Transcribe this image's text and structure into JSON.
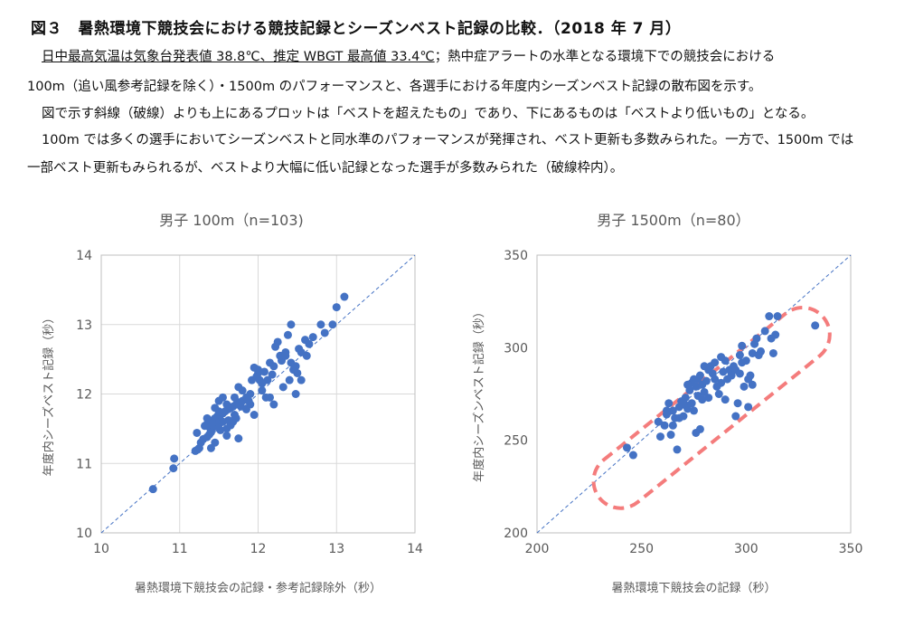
{
  "figure": {
    "title": "図３　暑熱環境下競技会における競技記録とシーズンベスト記録の比較．（2018 年 7 月）",
    "paragraphs": {
      "p1_underlined": "日中最高気温は気象台発表値 38.8℃、推定 WBGT 最高値 33.4℃",
      "p1_rest": "；熱中症アラートの水準となる環境下での競技会における",
      "p2": "100m（追い風参考記録を除く）・1500m のパフォーマンスと、各選手における年度内シーズンベスト記録の散布図を示す。",
      "p3": "図で示す斜線（破線）よりも上にあるプロットは「ベストを超えたもの」であり、下にあるものは「ベストより低いもの」となる。",
      "p4": "100m では多くの選手においてシーズンベストと同水準のパフォーマンスが発揮され、ベスト更新も多数みられた。一方で、1500m では",
      "p5": "一部ベスト更新もみられるが、ベストより大幅に低い記録となった選手が多数みられた（破線枠内）。"
    }
  },
  "colors": {
    "point": "#4472C4",
    "diagonal": "#4472C4",
    "highlight": "#F47C7C",
    "grid": "#D9D9D9",
    "axis": "#BFBFBF",
    "text": "#595959"
  },
  "chart_data": [
    {
      "type": "scatter",
      "title": "男子 100m（n=103)",
      "xlabel": "暑熱環境下競技会の記録・参考記録除外（秒）",
      "ylabel": "年度内シーズベスト記録（秒）",
      "xlim": [
        10,
        14
      ],
      "ylim": [
        10,
        14
      ],
      "xticks": [
        10,
        11,
        12,
        13,
        14
      ],
      "yticks": [
        10,
        11,
        12,
        13,
        14
      ],
      "grid": true,
      "diagonal": "y=x dashed",
      "points": [
        [
          10.66,
          10.63
        ],
        [
          10.92,
          10.93
        ],
        [
          10.93,
          11.07
        ],
        [
          11.2,
          11.18
        ],
        [
          11.23,
          11.2
        ],
        [
          11.25,
          11.22
        ],
        [
          11.27,
          11.3
        ],
        [
          11.3,
          11.35
        ],
        [
          11.35,
          11.38
        ],
        [
          11.38,
          11.42
        ],
        [
          11.22,
          11.44
        ],
        [
          11.4,
          11.47
        ],
        [
          11.45,
          11.53
        ],
        [
          11.32,
          11.54
        ],
        [
          11.35,
          11.57
        ],
        [
          11.38,
          11.6
        ],
        [
          11.42,
          11.62
        ],
        [
          11.45,
          11.65
        ],
        [
          11.48,
          11.68
        ],
        [
          11.52,
          11.7
        ],
        [
          11.55,
          11.72
        ],
        [
          11.58,
          11.75
        ],
        [
          11.62,
          11.78
        ],
        [
          11.65,
          11.8
        ],
        [
          11.68,
          11.82
        ],
        [
          11.72,
          11.85
        ],
        [
          11.75,
          11.88
        ],
        [
          11.8,
          11.9
        ],
        [
          11.85,
          11.95
        ],
        [
          11.9,
          12.0
        ],
        [
          11.35,
          11.65
        ],
        [
          11.38,
          11.52
        ],
        [
          11.4,
          11.45
        ],
        [
          11.42,
          11.55
        ],
        [
          11.5,
          11.58
        ],
        [
          11.55,
          11.6
        ],
        [
          11.6,
          11.5
        ],
        [
          11.65,
          11.55
        ],
        [
          11.68,
          11.6
        ],
        [
          11.72,
          11.65
        ],
        [
          11.45,
          11.8
        ],
        [
          11.5,
          11.9
        ],
        [
          11.55,
          11.95
        ],
        [
          11.6,
          11.85
        ],
        [
          11.7,
          11.7
        ],
        [
          11.75,
          11.36
        ],
        [
          11.4,
          11.22
        ],
        [
          11.45,
          11.3
        ],
        [
          11.6,
          11.4
        ],
        [
          11.5,
          11.75
        ],
        [
          11.7,
          11.95
        ],
        [
          11.8,
          12.05
        ],
        [
          11.75,
          12.1
        ],
        [
          11.85,
          11.78
        ],
        [
          11.9,
          11.85
        ],
        [
          11.95,
          11.7
        ],
        [
          11.98,
          12.25
        ],
        [
          12.0,
          12.3
        ],
        [
          12.02,
          12.2
        ],
        [
          12.05,
          12.15
        ],
        [
          12.0,
          12.35
        ],
        [
          11.95,
          12.38
        ],
        [
          12.05,
          12.05
        ],
        [
          12.1,
          11.95
        ],
        [
          12.12,
          12.2
        ],
        [
          12.15,
          12.45
        ],
        [
          12.2,
          12.4
        ],
        [
          12.18,
          12.28
        ],
        [
          12.22,
          12.68
        ],
        [
          12.25,
          12.75
        ],
        [
          12.28,
          12.55
        ],
        [
          12.3,
          12.48
        ],
        [
          12.32,
          12.1
        ],
        [
          12.35,
          12.6
        ],
        [
          12.38,
          12.85
        ],
        [
          12.4,
          12.2
        ],
        [
          12.42,
          12.45
        ],
        [
          12.45,
          12.35
        ],
        [
          12.48,
          12.0
        ],
        [
          12.5,
          12.3
        ],
        [
          12.42,
          13.0
        ],
        [
          12.52,
          12.65
        ],
        [
          12.55,
          12.2
        ],
        [
          12.55,
          12.6
        ],
        [
          12.6,
          12.78
        ],
        [
          12.62,
          12.55
        ],
        [
          12.65,
          12.72
        ],
        [
          12.7,
          12.82
        ],
        [
          12.8,
          13.0
        ],
        [
          12.85,
          12.88
        ],
        [
          12.95,
          13.0
        ],
        [
          13.0,
          13.25
        ],
        [
          13.1,
          13.4
        ],
        [
          12.2,
          11.85
        ],
        [
          12.15,
          11.95
        ],
        [
          11.88,
          11.9
        ],
        [
          11.92,
          12.2
        ],
        [
          12.08,
          12.32
        ],
        [
          12.35,
          12.55
        ],
        [
          12.48,
          12.4
        ],
        [
          11.62,
          11.62
        ],
        [
          11.78,
          11.82
        ],
        [
          11.52,
          11.48
        ]
      ]
    },
    {
      "type": "scatter",
      "title": "男子 1500m（n=80）",
      "xlabel": "暑熱環境下競技会の記録（秒）",
      "ylabel": "年度内シーズンベスト記録（秒）",
      "xlim": [
        200,
        350
      ],
      "ylim": [
        200,
        350
      ],
      "xticks": [
        200,
        250,
        300,
        350
      ],
      "yticks": [
        200,
        250,
        300,
        350
      ],
      "grid": false,
      "diagonal": "y=x dashed",
      "highlight": "dashed rounded region below the diagonal",
      "points": [
        [
          243,
          246
        ],
        [
          246,
          242
        ],
        [
          259,
          252
        ],
        [
          261,
          258
        ],
        [
          262,
          264
        ],
        [
          263,
          270
        ],
        [
          264,
          253
        ],
        [
          265,
          266
        ],
        [
          266,
          262
        ],
        [
          267,
          245
        ],
        [
          268,
          268
        ],
        [
          269,
          271
        ],
        [
          270,
          263
        ],
        [
          271,
          269
        ],
        [
          272,
          267
        ],
        [
          273,
          277
        ],
        [
          274,
          281
        ],
        [
          275,
          283
        ],
        [
          276,
          279
        ],
        [
          277,
          274
        ],
        [
          278,
          285
        ],
        [
          279,
          280
        ],
        [
          280,
          276
        ],
        [
          281,
          282
        ],
        [
          282,
          288
        ],
        [
          283,
          290
        ],
        [
          284,
          286
        ],
        [
          285,
          283
        ],
        [
          286,
          279
        ],
        [
          287,
          275
        ],
        [
          288,
          281
        ],
        [
          289,
          287
        ],
        [
          290,
          293
        ],
        [
          291,
          283
        ],
        [
          292,
          288
        ],
        [
          293,
          285
        ],
        [
          294,
          290
        ],
        [
          295,
          263
        ],
        [
          296,
          270
        ],
        [
          297,
          296
        ],
        [
          298,
          301
        ],
        [
          299,
          279
        ],
        [
          300,
          293
        ],
        [
          301,
          283
        ],
        [
          302,
          285
        ],
        [
          303,
          297
        ],
        [
          304,
          302
        ],
        [
          305,
          305
        ],
        [
          307,
          298
        ],
        [
          309,
          309
        ],
        [
          311,
          317
        ],
        [
          312,
          305
        ],
        [
          313,
          297
        ],
        [
          314,
          307
        ],
        [
          315,
          317
        ],
        [
          333,
          312
        ],
        [
          270,
          270
        ],
        [
          272,
          280
        ],
        [
          275,
          266
        ],
        [
          276,
          254
        ],
        [
          278,
          256
        ],
        [
          279,
          272
        ],
        [
          282,
          273
        ],
        [
          285,
          292
        ],
        [
          288,
          295
        ],
        [
          290,
          272
        ],
        [
          295,
          288
        ],
        [
          297,
          286
        ],
        [
          298,
          292
        ],
        [
          301,
          268
        ],
        [
          303,
          280
        ],
        [
          306,
          296
        ],
        [
          258,
          260
        ],
        [
          262,
          266
        ],
        [
          265,
          258
        ],
        [
          268,
          262
        ],
        [
          271,
          273
        ],
        [
          274,
          270
        ],
        [
          277,
          283
        ],
        [
          280,
          290
        ]
      ]
    }
  ]
}
